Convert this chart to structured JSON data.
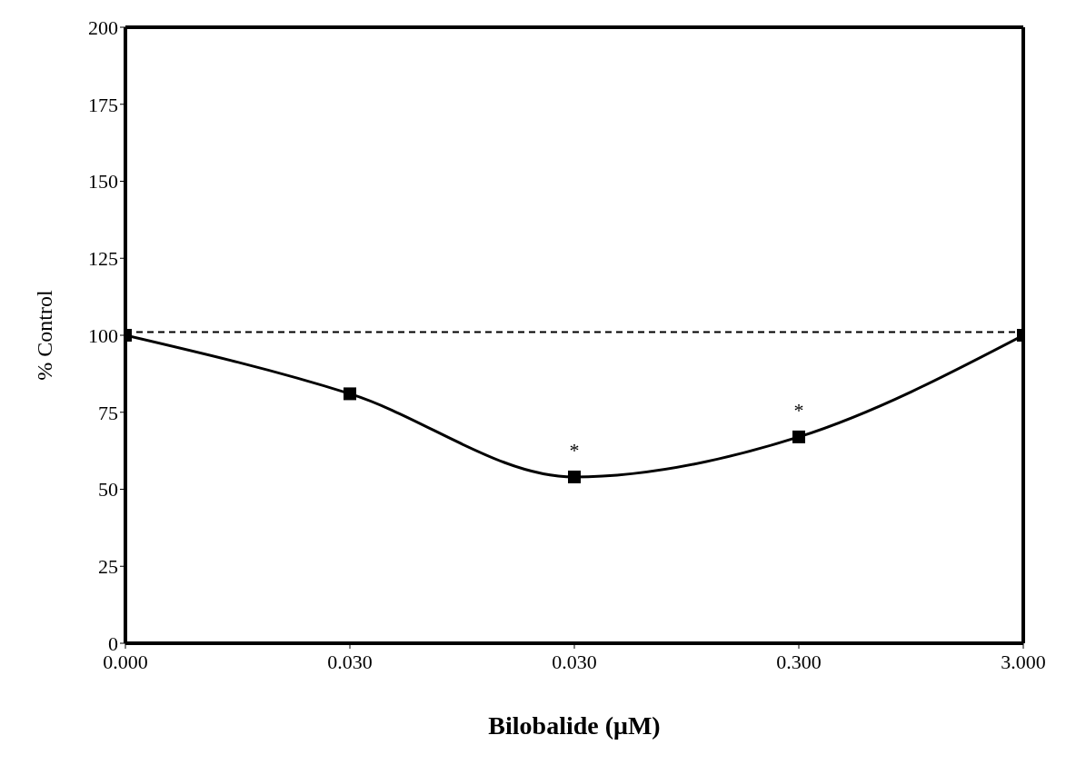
{
  "chart_data": {
    "type": "line",
    "xlabel": "Bilobalide (μM)",
    "ylabel": "% Control",
    "categories": [
      "0.000",
      "0.030",
      "0.030",
      "0.300",
      "3.000"
    ],
    "series": [
      {
        "color": "#000000",
        "values": [
          100,
          81,
          54,
          67,
          100
        ]
      }
    ],
    "ylim": [
      0,
      200
    ],
    "yticks": [
      0,
      25,
      50,
      75,
      100,
      125,
      150,
      175,
      200
    ],
    "marker": "square",
    "line_style": "solid",
    "grid": false,
    "legend": false,
    "ref_lines": [
      {
        "axis": "y",
        "value": 101,
        "line_style": "dashed",
        "color": "#000000"
      }
    ],
    "annotations": [
      {
        "text": "*",
        "y": 54
      },
      {
        "text": "*",
        "x": "0.300",
        "y": 67
      }
    ]
  }
}
